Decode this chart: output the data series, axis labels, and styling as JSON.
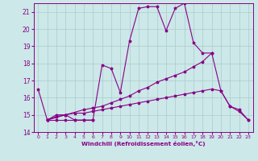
{
  "xlabel": "Windchill (Refroidissement éolien,°C)",
  "bg_color": "#cce8e8",
  "grid_color": "#aacccc",
  "line_color": "#880088",
  "xlim": [
    -0.5,
    23.5
  ],
  "ylim": [
    14,
    21.5
  ],
  "yticks": [
    14,
    15,
    16,
    17,
    18,
    19,
    20,
    21
  ],
  "xticks": [
    0,
    1,
    2,
    3,
    4,
    5,
    6,
    7,
    8,
    9,
    10,
    11,
    12,
    13,
    14,
    15,
    16,
    17,
    18,
    19,
    20,
    21,
    22,
    23
  ],
  "lines": [
    {
      "x": [
        0,
        1,
        2,
        3,
        4,
        5,
        6,
        7,
        8,
        9,
        10,
        11,
        12,
        13,
        14,
        15,
        16,
        17,
        18,
        19,
        20,
        21,
        22,
        23
      ],
      "y": [
        16.5,
        14.7,
        15.0,
        15.0,
        14.7,
        14.7,
        14.7,
        17.9,
        17.7,
        16.3,
        19.3,
        21.2,
        21.3,
        21.3,
        19.9,
        21.2,
        21.5,
        19.2,
        18.6,
        18.6,
        16.4,
        15.5,
        15.3,
        14.7
      ]
    },
    {
      "x": [
        1,
        2,
        3,
        4,
        5,
        6
      ],
      "y": [
        14.7,
        14.7,
        14.7,
        14.7,
        14.7,
        14.7
      ]
    },
    {
      "x": [
        1,
        3,
        5,
        6,
        7,
        8,
        9,
        10,
        11,
        12,
        13,
        14,
        15,
        16,
        17,
        18,
        19
      ],
      "y": [
        14.7,
        15.0,
        15.3,
        15.4,
        15.5,
        15.7,
        15.9,
        16.1,
        16.4,
        16.6,
        16.9,
        17.1,
        17.3,
        17.5,
        17.8,
        18.1,
        18.6
      ]
    },
    {
      "x": [
        1,
        2,
        3,
        4,
        5,
        6,
        7,
        8,
        9,
        10,
        11,
        12,
        13,
        14,
        15,
        16,
        17,
        18,
        19,
        20,
        21,
        22,
        23
      ],
      "y": [
        14.7,
        14.9,
        15.0,
        15.1,
        15.1,
        15.2,
        15.3,
        15.4,
        15.5,
        15.6,
        15.7,
        15.8,
        15.9,
        16.0,
        16.1,
        16.2,
        16.3,
        16.4,
        16.5,
        16.4,
        15.5,
        15.2,
        14.7
      ]
    }
  ]
}
